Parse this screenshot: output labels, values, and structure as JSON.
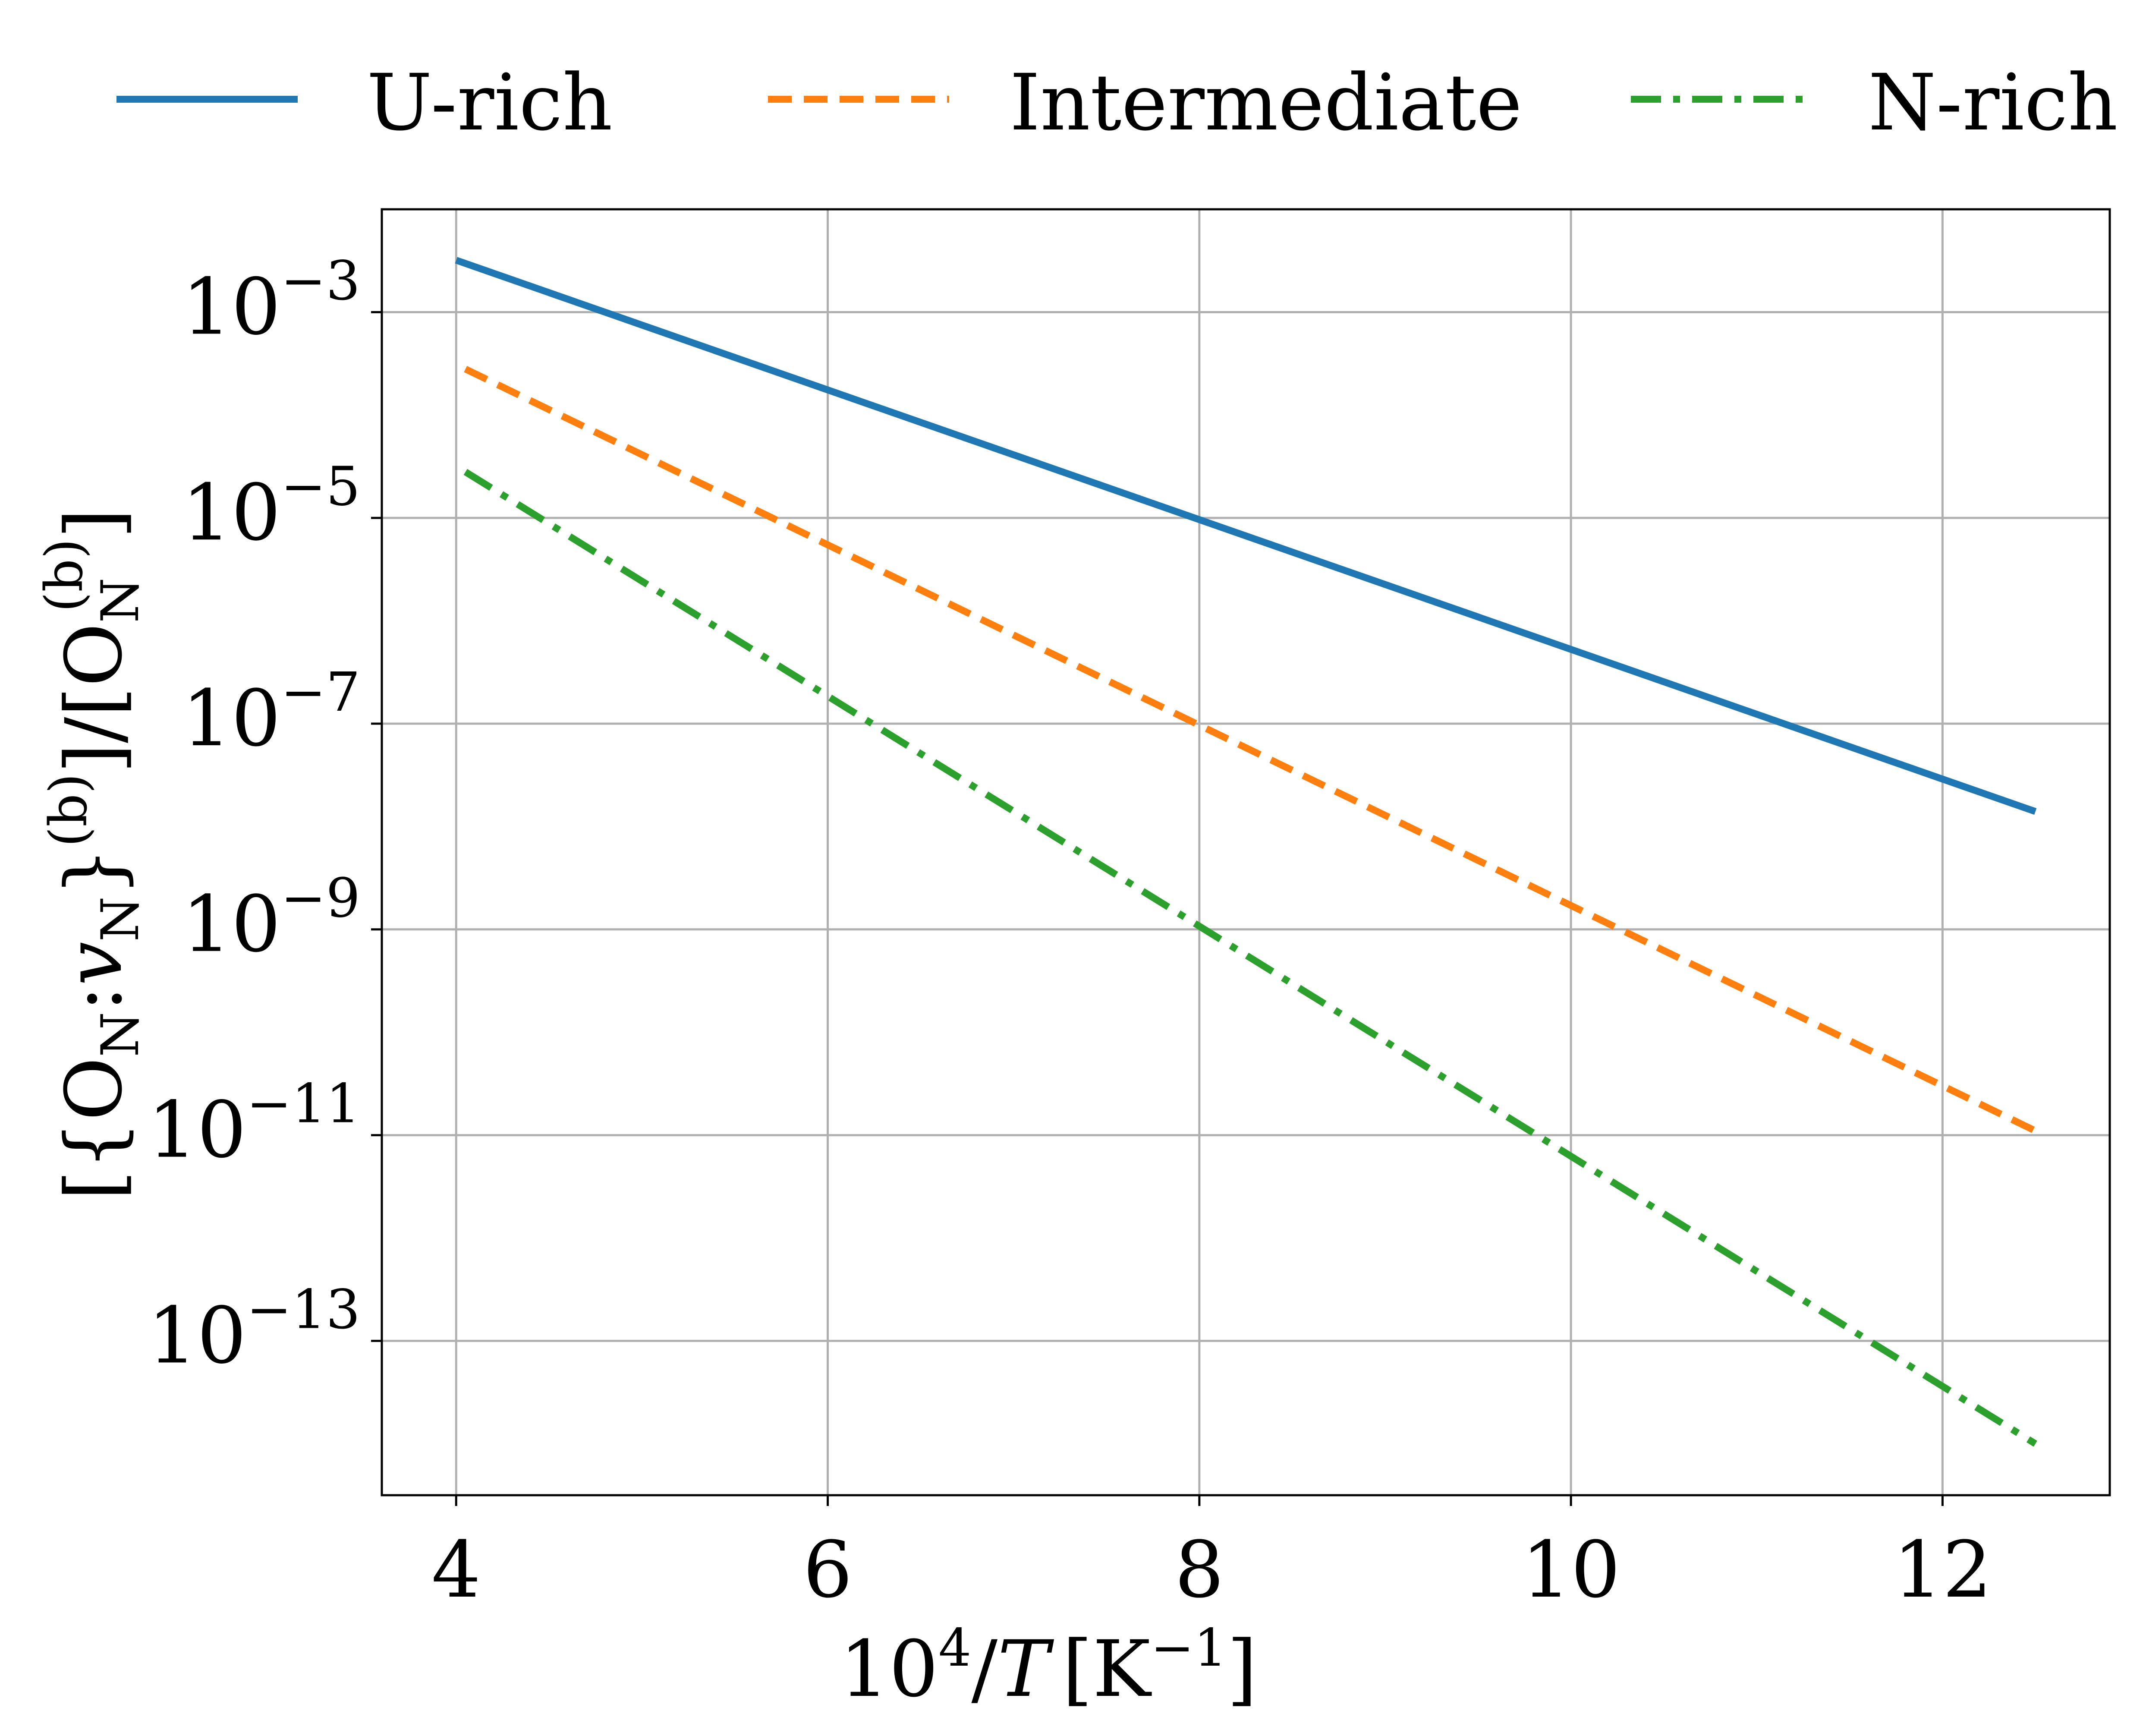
{
  "chart_data": {
    "type": "line",
    "xlabel": {
      "base": "10",
      "exp": "4",
      "italic": "T",
      "unit": "[K",
      "unit_exp": "−1",
      "close": "]"
    },
    "ylabel": {
      "open": "[{O",
      "sub1": "N",
      "colon": ":",
      "v": "v",
      "sub2": "N",
      "close_brace": "}",
      "sup1": "(b)",
      "mid": "]/[O",
      "sub3": "N",
      "sup2": "(b)",
      "end": "]"
    },
    "xlim": [
      3.6,
      12.9
    ],
    "ylog": true,
    "ylim_exp": [
      -14.5,
      -2.0
    ],
    "grid": true,
    "legend_position": "top, above plot",
    "xticks": [
      {
        "value": 4,
        "label": "4"
      },
      {
        "value": 6,
        "label": "6"
      },
      {
        "value": 8,
        "label": "8"
      },
      {
        "value": 10,
        "label": "10"
      },
      {
        "value": 12,
        "label": "12"
      }
    ],
    "yticks": [
      {
        "exp": -3,
        "base": "10",
        "sup": "−3"
      },
      {
        "exp": -5,
        "base": "10",
        "sup": "−5"
      },
      {
        "exp": -7,
        "base": "10",
        "sup": "−7"
      },
      {
        "exp": -9,
        "base": "10",
        "sup": "−9"
      },
      {
        "exp": -11,
        "base": "10",
        "sup": "−11"
      },
      {
        "exp": -13,
        "base": "10",
        "sup": "−13"
      }
    ],
    "series": [
      {
        "name": "U-rich",
        "color": "#1f77b4",
        "style": "solid",
        "x": [
          4.0,
          12.5
        ],
        "y": [
          0.0032,
          1.4e-08
        ]
      },
      {
        "name": "Intermediate",
        "color": "#ff7f0e",
        "style": "dashed",
        "x": [
          4.05,
          12.5
        ],
        "y": [
          0.00028,
          1.1e-11
        ]
      },
      {
        "name": "N-rich",
        "color": "#2ca02c",
        "style": "dashdot",
        "x": [
          4.05,
          12.5
        ],
        "y": [
          2.8e-05,
          1e-14
        ]
      }
    ]
  }
}
